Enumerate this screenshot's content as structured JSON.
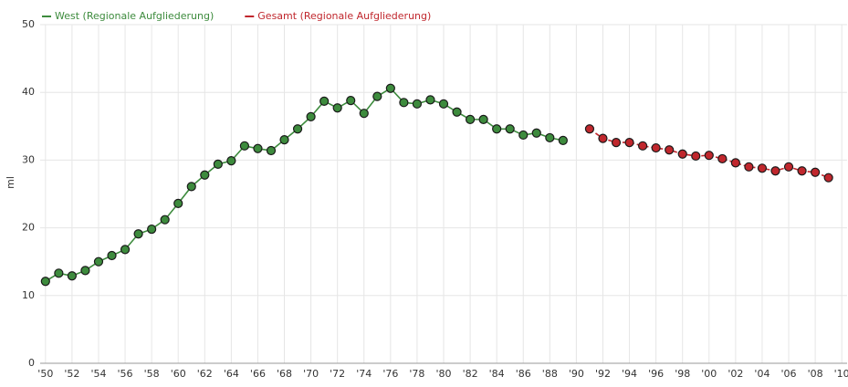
{
  "chart_data": {
    "type": "line",
    "y_label": "ml",
    "series": [
      {
        "name": "West (Regionale Aufgliederung)",
        "color": "#3d8b3d",
        "dash": false,
        "x": [
          1950,
          1951,
          1952,
          1953,
          1954,
          1955,
          1956,
          1957,
          1958,
          1959,
          1960,
          1961,
          1962,
          1963,
          1964,
          1965,
          1966,
          1967,
          1968,
          1969,
          1970,
          1971,
          1972,
          1973,
          1974,
          1975,
          1976,
          1977,
          1978,
          1979,
          1980,
          1981,
          1982,
          1983,
          1984,
          1985,
          1986,
          1987,
          1988,
          1989
        ],
        "values": [
          12.1,
          13.3,
          12.9,
          13.7,
          15.0,
          15.9,
          16.8,
          19.1,
          19.8,
          21.2,
          23.6,
          26.1,
          27.8,
          29.4,
          29.9,
          32.1,
          31.7,
          31.4,
          33.0,
          34.6,
          36.4,
          38.7,
          37.7,
          38.8,
          36.9,
          39.4,
          40.6,
          38.5,
          38.3,
          38.9,
          38.3,
          37.1,
          36.0,
          36.0,
          34.6,
          34.6,
          33.7,
          34.0,
          33.3,
          32.9
        ]
      },
      {
        "name": "Gesamt (Regionale Aufgliederung)",
        "color": "#c0272d",
        "dash": true,
        "x": [
          1991,
          1992,
          1993,
          1994,
          1995,
          1996,
          1997,
          1998,
          1999,
          2000,
          2001,
          2002,
          2003,
          2004,
          2005,
          2006,
          2007,
          2008,
          2009
        ],
        "values": [
          34.6,
          33.2,
          32.6,
          32.6,
          32.1,
          31.8,
          31.5,
          30.9,
          30.6,
          30.7,
          30.2,
          29.6,
          29.0,
          28.8,
          28.4,
          29.0,
          28.4,
          28.2,
          27.4
        ]
      }
    ],
    "xlim": [
      1949.6,
      2010.4
    ],
    "xticks": [
      {
        "value": 1950,
        "label": "'50"
      },
      {
        "value": 1952,
        "label": "'52"
      },
      {
        "value": 1954,
        "label": "'54"
      },
      {
        "value": 1956,
        "label": "'56"
      },
      {
        "value": 1958,
        "label": "'58"
      },
      {
        "value": 1960,
        "label": "'60"
      },
      {
        "value": 1962,
        "label": "'62"
      },
      {
        "value": 1964,
        "label": "'64"
      },
      {
        "value": 1966,
        "label": "'66"
      },
      {
        "value": 1968,
        "label": "'68"
      },
      {
        "value": 1970,
        "label": "'70"
      },
      {
        "value": 1972,
        "label": "'72"
      },
      {
        "value": 1974,
        "label": "'74"
      },
      {
        "value": 1976,
        "label": "'76"
      },
      {
        "value": 1978,
        "label": "'78"
      },
      {
        "value": 1980,
        "label": "'80"
      },
      {
        "value": 1982,
        "label": "'82"
      },
      {
        "value": 1984,
        "label": "'84"
      },
      {
        "value": 1986,
        "label": "'86"
      },
      {
        "value": 1988,
        "label": "'88"
      },
      {
        "value": 1990,
        "label": "'90"
      },
      {
        "value": 1992,
        "label": "'92"
      },
      {
        "value": 1994,
        "label": "'94"
      },
      {
        "value": 1996,
        "label": "'96"
      },
      {
        "value": 1998,
        "label": "'98"
      },
      {
        "value": 2000,
        "label": "'00"
      },
      {
        "value": 2002,
        "label": "'02"
      },
      {
        "value": 2004,
        "label": "'04"
      },
      {
        "value": 2006,
        "label": "'06"
      },
      {
        "value": 2008,
        "label": "'08"
      },
      {
        "value": 2010,
        "label": "'10"
      }
    ],
    "ylim": [
      0,
      50
    ],
    "yticks": [
      0,
      10,
      20,
      30,
      40,
      50
    ],
    "grid": true
  }
}
